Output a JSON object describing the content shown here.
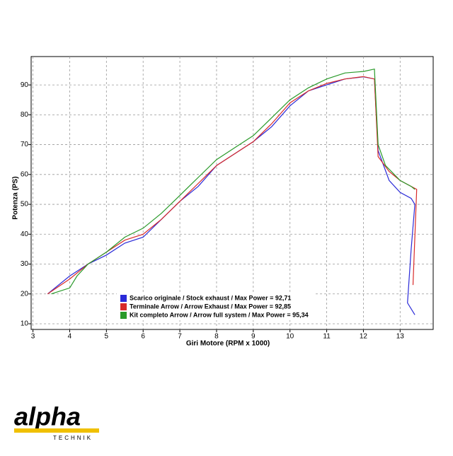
{
  "chart_data": {
    "type": "line",
    "xlabel": "Giri Motore (RPM x 1000)",
    "ylabel": "Potenza (PS)",
    "xlim": [
      2.95,
      13.9
    ],
    "ylim": [
      8.1,
      99.5
    ],
    "xticks": [
      3,
      4,
      5,
      6,
      7,
      8,
      9,
      10,
      11,
      12,
      13
    ],
    "yticks": [
      10,
      20,
      30,
      40,
      50,
      60,
      70,
      80,
      90
    ],
    "grid": true,
    "legend": "bottom-left",
    "series": [
      {
        "name": "Scarico originale / Stock exhaust / Max Power = 92,71",
        "color": "#2a2ad8",
        "x": [
          3.4,
          4,
          4.5,
          5,
          5.5,
          6,
          6.5,
          7,
          7.5,
          8,
          8.5,
          9,
          9.5,
          10,
          10.5,
          11,
          11.5,
          12,
          12.3,
          12.4,
          12.7,
          13,
          13.3,
          13.4,
          13.3,
          13.2,
          13.4
        ],
        "values": [
          20,
          26,
          30,
          33,
          37,
          39,
          45,
          51,
          56,
          63,
          67,
          71,
          76,
          83,
          88,
          90,
          92,
          92.7,
          92,
          68,
          58,
          54,
          52,
          50,
          35,
          17,
          13
        ]
      },
      {
        "name": "Terminale Arrow / Arrow Exhaust / Max Power = 92,85",
        "color": "#d82a2a",
        "x": [
          3.4,
          4,
          4.5,
          5,
          5.5,
          6,
          6.5,
          7,
          7.5,
          8,
          8.5,
          9,
          9.5,
          10,
          10.5,
          11,
          11.5,
          12,
          12.3,
          12.4,
          12.7,
          13,
          13.45,
          13.35
        ],
        "values": [
          20,
          25,
          30,
          34,
          38,
          40,
          45,
          51,
          57,
          63,
          67,
          71,
          77,
          84,
          88,
          90.5,
          92,
          92.8,
          92,
          66,
          61,
          58,
          55,
          23
        ]
      },
      {
        "name": "Kit completo Arrow / Arrow full system / Max Power = 95,34",
        "color": "#2a9a2a",
        "x": [
          3.5,
          4,
          4.2,
          4.5,
          5,
          5.5,
          6,
          6.5,
          7,
          7.5,
          8,
          8.5,
          9,
          9.5,
          10,
          10.5,
          11,
          11.5,
          12,
          12.3,
          12.4,
          12.6,
          13,
          13.3,
          13.4
        ],
        "values": [
          20,
          22,
          26,
          30,
          34,
          39,
          42,
          47,
          53,
          59,
          65,
          69,
          73,
          79,
          85,
          89,
          92,
          94,
          94.5,
          95.3,
          70,
          63,
          58,
          56,
          55
        ]
      }
    ]
  },
  "logo": {
    "brand": "alpha",
    "sub": "TECHNIK"
  }
}
